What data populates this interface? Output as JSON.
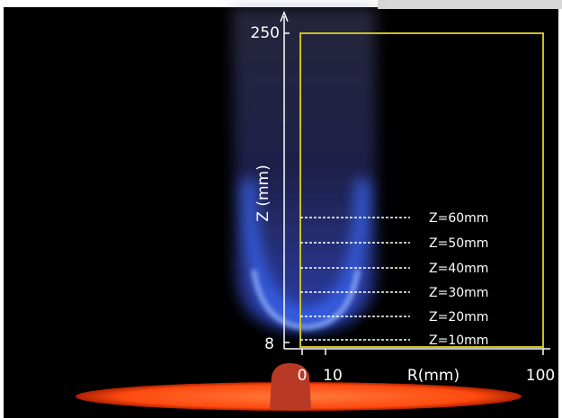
{
  "axes": {
    "z_label": "Z (mm)",
    "r_label": "R(mm)",
    "z_ticks": [
      "250",
      "8"
    ],
    "r_ticks": [
      "0",
      "10",
      "100"
    ]
  },
  "measurement_lines": [
    "Z=60mm",
    "Z=50mm",
    "Z=40mm",
    "Z=30mm",
    "Z=20mm",
    "Z=10mm"
  ]
}
